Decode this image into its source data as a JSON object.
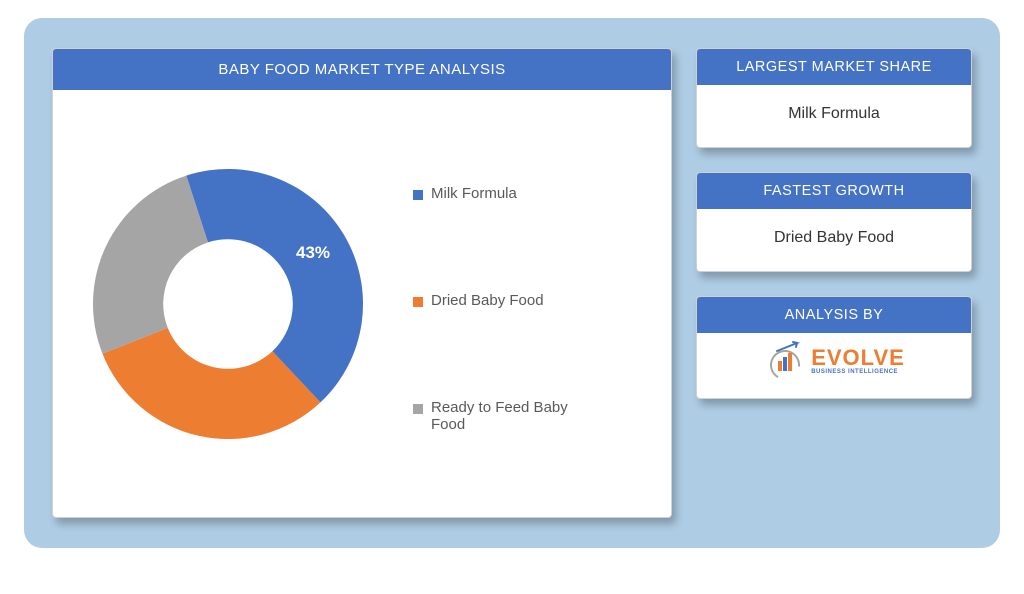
{
  "chart": {
    "type": "donut",
    "title": "BABY FOOD MARKET TYPE ANALYSIS",
    "inner_radius_ratio": 0.48,
    "background_color": "#ffffff",
    "header_bg": "#4472c4",
    "header_text_color": "#ffffff",
    "segments": [
      {
        "name": "Milk Formula",
        "value": 43,
        "color": "#4472c4",
        "label_shown": true,
        "label": "43%"
      },
      {
        "name": "Dried Baby Food",
        "value": 31,
        "color": "#ed7d31",
        "label_shown": false,
        "label": ""
      },
      {
        "name": "Ready to Feed Baby Food",
        "value": 26,
        "color": "#a5a5a5",
        "label_shown": false,
        "label": ""
      }
    ],
    "start_angle_deg": -18,
    "legend": {
      "items": [
        {
          "label": "Milk Formula",
          "color": "#4472c4"
        },
        {
          "label": "Dried Baby Food",
          "color": "#ed7d31"
        },
        {
          "label": "Ready to Feed Baby Food",
          "color": "#a5a5a5"
        }
      ],
      "fontsize": 15,
      "text_color": "#595959"
    }
  },
  "cards": {
    "largest": {
      "title": "LARGEST MARKET SHARE",
      "value": "Milk Formula"
    },
    "fastest": {
      "title": "FASTEST GROWTH",
      "value": "Dried Baby Food"
    },
    "analysis": {
      "title": "ANALYSIS BY"
    }
  },
  "brand": {
    "name": "EVOLVE",
    "tagline": "BUSINESS INTELLIGENCE",
    "accent": "#ed7d31",
    "bar_colors": [
      "#ed7d31",
      "#4472c4",
      "#ed7d31"
    ]
  },
  "layout": {
    "canvas_bg": "#aecce4",
    "panel_shadow": "rgba(0,0,0,0.25)"
  }
}
